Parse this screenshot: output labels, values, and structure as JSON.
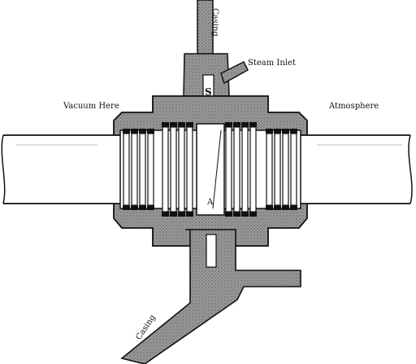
{
  "labels": {
    "casing_top": "Casing",
    "steam_inlet": "Steam Inlet",
    "vacuum": "Vacuum Here",
    "atmosphere": "Atmosphere",
    "letter_s": "S",
    "letter_a": "A",
    "casing_bottom": "Casing"
  },
  "colors": {
    "ink": "#111111",
    "casing_fill": "#8a8a8a",
    "shaft_fill": "#ffffff"
  }
}
